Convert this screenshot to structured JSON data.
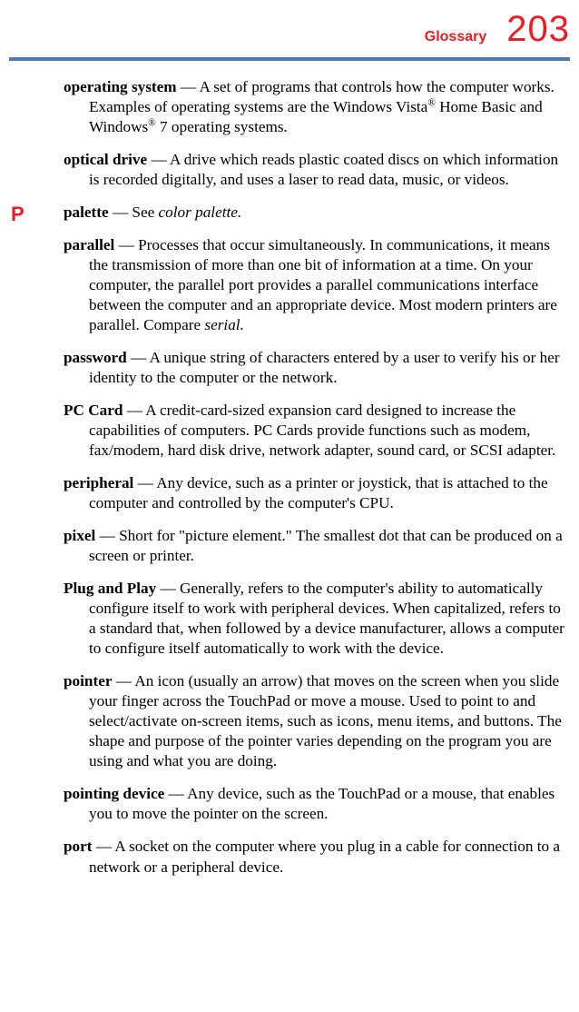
{
  "header": {
    "section_title": "Glossary",
    "page_number": "203"
  },
  "colors": {
    "accent": "#ed1c24",
    "divider": "#4a7bb5",
    "text": "#000000",
    "background": "#ffffff"
  },
  "letter_marker": "P",
  "entries": [
    {
      "term": "operating system",
      "sep": " — ",
      "body_pre": "A set of programs that controls how the computer works. Examples of operating systems are the Windows Vista",
      "sup1": "®",
      "body_mid": " Home Basic and Windows",
      "sup2": "®",
      "body_post": " 7 operating systems.",
      "has_marker": false
    },
    {
      "term": "optical drive",
      "sep": " — ",
      "body": "A drive which reads plastic coated discs on which information is recorded digitally, and uses a laser to read data, music, or videos.",
      "has_marker": false
    },
    {
      "term": "palette",
      "sep": " — ",
      "body_pre": "See ",
      "italic": "color palette.",
      "has_marker": true
    },
    {
      "term": "parallel",
      "sep": " — ",
      "body_pre": "Processes that occur simultaneously. In communications, it means the transmission of more than one bit of information at a time. On your computer, the parallel port provides a parallel communications interface between the computer and an appropriate device. Most modern printers are parallel. Compare ",
      "italic": "serial.",
      "has_marker": false
    },
    {
      "term": "password",
      "sep": " — ",
      "body": "A unique string of characters entered by a user to verify his or her identity to the computer or the network.",
      "has_marker": false
    },
    {
      "term": "PC Card",
      "sep": " — ",
      "body": "A credit-card-sized expansion card designed to increase the capabilities of computers. PC Cards provide functions such as modem, fax/modem, hard disk drive, network adapter, sound card, or SCSI adapter.",
      "has_marker": false
    },
    {
      "term": "peripheral",
      "sep": " — ",
      "body": "Any device, such as a printer or joystick, that is attached to the computer and controlled by the computer's CPU.",
      "has_marker": false
    },
    {
      "term": "pixel",
      "sep": " — ",
      "body": "Short for \"picture element.\" The smallest dot that can be produced on a screen or printer.",
      "has_marker": false
    },
    {
      "term": "Plug and Play",
      "sep": " — ",
      "body": "Generally, refers to the computer's ability to automatically configure itself to work with peripheral devices. When capitalized, refers to a standard that, when followed by a device manufacturer, allows a computer to configure itself automatically to work with the device.",
      "has_marker": false
    },
    {
      "term": "pointer",
      "sep": " — ",
      "body": "An icon (usually an arrow) that moves on the screen when you slide your finger across the TouchPad or move a mouse. Used to point to and select/activate on-screen items, such as icons, menu items, and buttons. The shape and purpose of the pointer varies depending on the program you are using and what you are doing.",
      "has_marker": false
    },
    {
      "term": "pointing device",
      "sep": " — ",
      "body": "Any device, such as the TouchPad or a mouse, that enables you to move the pointer on the screen.",
      "has_marker": false
    },
    {
      "term": "port",
      "sep": " — ",
      "body": "A socket on the computer where you plug in a cable for connection to a network or a peripheral device.",
      "has_marker": false
    }
  ]
}
